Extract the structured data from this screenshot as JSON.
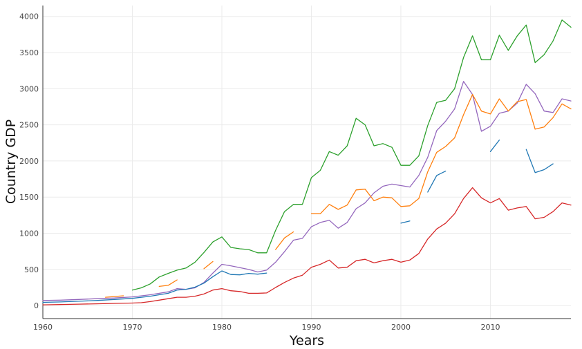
{
  "chart_data": {
    "type": "line",
    "title": "",
    "xlabel": "Years",
    "ylabel": "Country GDP",
    "xlim": [
      1960,
      2019
    ],
    "ylim": [
      -180,
      4150
    ],
    "x_ticks": [
      1960,
      1970,
      1980,
      1990,
      2000,
      2010
    ],
    "y_ticks": [
      0,
      500,
      1000,
      1500,
      2000,
      2500,
      3000,
      3500,
      4000
    ],
    "grid": true,
    "legend": "none",
    "series": [
      {
        "color": "#2ca02c",
        "points": [
          [
            1970,
            215
          ],
          [
            1971,
            245
          ],
          [
            1972,
            300
          ],
          [
            1973,
            395
          ],
          [
            1974,
            445
          ],
          [
            1975,
            490
          ],
          [
            1976,
            520
          ],
          [
            1977,
            600
          ],
          [
            1978,
            735
          ],
          [
            1979,
            880
          ],
          [
            1980,
            950
          ],
          [
            1981,
            805
          ],
          [
            1982,
            785
          ],
          [
            1983,
            775
          ],
          [
            1984,
            730
          ],
          [
            1985,
            730
          ],
          [
            1986,
            1040
          ],
          [
            1987,
            1300
          ],
          [
            1988,
            1400
          ],
          [
            1989,
            1400
          ],
          [
            1990,
            1770
          ],
          [
            1991,
            1870
          ],
          [
            1992,
            2130
          ],
          [
            1993,
            2080
          ],
          [
            1994,
            2210
          ],
          [
            1995,
            2590
          ],
          [
            1996,
            2500
          ],
          [
            1997,
            2210
          ],
          [
            1998,
            2240
          ],
          [
            1999,
            2190
          ],
          [
            2000,
            1940
          ],
          [
            2001,
            1940
          ],
          [
            2002,
            2070
          ],
          [
            2003,
            2490
          ],
          [
            2004,
            2810
          ],
          [
            2005,
            2840
          ],
          [
            2006,
            3000
          ],
          [
            2007,
            3430
          ],
          [
            2008,
            3730
          ],
          [
            2009,
            3400
          ],
          [
            2010,
            3400
          ],
          [
            2011,
            3740
          ],
          [
            2012,
            3530
          ],
          [
            2013,
            3730
          ],
          [
            2014,
            3880
          ],
          [
            2015,
            3360
          ],
          [
            2016,
            3470
          ],
          [
            2017,
            3660
          ],
          [
            2018,
            3950
          ],
          [
            2019,
            3850
          ]
        ]
      },
      {
        "color": "#9467bd",
        "points": [
          [
            1960,
            70
          ],
          [
            1962,
            75
          ],
          [
            1964,
            85
          ],
          [
            1966,
            95
          ],
          [
            1968,
            105
          ],
          [
            1970,
            120
          ],
          [
            1972,
            150
          ],
          [
            1974,
            190
          ],
          [
            1975,
            235
          ],
          [
            1976,
            225
          ],
          [
            1977,
            245
          ],
          [
            1978,
            320
          ],
          [
            1979,
            450
          ],
          [
            1980,
            570
          ],
          [
            1981,
            550
          ],
          [
            1982,
            525
          ],
          [
            1983,
            500
          ],
          [
            1984,
            465
          ],
          [
            1985,
            490
          ],
          [
            1986,
            600
          ],
          [
            1987,
            745
          ],
          [
            1988,
            905
          ],
          [
            1989,
            930
          ],
          [
            1990,
            1090
          ],
          [
            1991,
            1150
          ],
          [
            1992,
            1180
          ],
          [
            1993,
            1070
          ],
          [
            1994,
            1150
          ],
          [
            1995,
            1340
          ],
          [
            1996,
            1420
          ],
          [
            1997,
            1560
          ],
          [
            1998,
            1650
          ],
          [
            1999,
            1680
          ],
          [
            2000,
            1660
          ],
          [
            2001,
            1640
          ],
          [
            2002,
            1800
          ],
          [
            2003,
            2050
          ],
          [
            2004,
            2420
          ],
          [
            2005,
            2550
          ],
          [
            2006,
            2720
          ],
          [
            2007,
            3100
          ],
          [
            2008,
            2920
          ],
          [
            2009,
            2410
          ],
          [
            2010,
            2480
          ],
          [
            2011,
            2660
          ],
          [
            2012,
            2690
          ],
          [
            2013,
            2800
          ],
          [
            2014,
            3060
          ],
          [
            2015,
            2930
          ],
          [
            2016,
            2690
          ],
          [
            2017,
            2670
          ],
          [
            2018,
            2860
          ],
          [
            2019,
            2830
          ]
        ]
      },
      {
        "color": "#ff7f0e",
        "points": [
          [
            1967,
            115
          ],
          [
            1969,
            135
          ],
          null,
          [
            1973,
            265
          ],
          [
            1974,
            280
          ],
          [
            1975,
            355
          ],
          null,
          [
            1978,
            510
          ],
          [
            1979,
            610
          ],
          null,
          [
            1986,
            775
          ],
          [
            1987,
            935
          ],
          [
            1988,
            1020
          ],
          null,
          [
            1990,
            1270
          ],
          [
            1991,
            1270
          ],
          [
            1992,
            1400
          ],
          [
            1993,
            1330
          ],
          [
            1994,
            1390
          ],
          [
            1995,
            1600
          ],
          [
            1996,
            1610
          ],
          [
            1997,
            1450
          ],
          [
            1998,
            1500
          ],
          [
            1999,
            1490
          ],
          [
            2000,
            1370
          ],
          [
            2001,
            1380
          ],
          [
            2002,
            1480
          ],
          [
            2003,
            1850
          ],
          [
            2004,
            2120
          ],
          [
            2005,
            2200
          ],
          [
            2006,
            2320
          ],
          [
            2007,
            2640
          ],
          [
            2008,
            2920
          ],
          [
            2009,
            2690
          ],
          [
            2010,
            2650
          ],
          [
            2011,
            2860
          ],
          [
            2012,
            2690
          ],
          [
            2013,
            2820
          ],
          [
            2014,
            2850
          ],
          [
            2015,
            2440
          ],
          [
            2016,
            2470
          ],
          [
            2017,
            2600
          ],
          [
            2018,
            2790
          ],
          [
            2019,
            2720
          ]
        ]
      },
      {
        "color": "#1f77b4",
        "points": [
          [
            1960,
            45
          ],
          [
            1962,
            50
          ],
          [
            1964,
            60
          ],
          [
            1966,
            70
          ],
          [
            1968,
            85
          ],
          [
            1970,
            100
          ],
          [
            1972,
            130
          ],
          [
            1974,
            170
          ],
          [
            1975,
            215
          ],
          [
            1976,
            225
          ],
          [
            1977,
            255
          ],
          [
            1978,
            310
          ],
          [
            1979,
            400
          ],
          [
            1980,
            480
          ],
          [
            1981,
            430
          ],
          [
            1982,
            425
          ],
          [
            1983,
            445
          ],
          [
            1984,
            435
          ],
          [
            1985,
            450
          ],
          null,
          [
            2000,
            1140
          ],
          [
            2001,
            1170
          ],
          null,
          [
            2003,
            1570
          ],
          [
            2004,
            1800
          ],
          [
            2005,
            1860
          ],
          null,
          [
            2010,
            2130
          ],
          [
            2011,
            2290
          ],
          null,
          [
            2014,
            2160
          ],
          [
            2015,
            1840
          ],
          [
            2016,
            1880
          ],
          [
            2017,
            1960
          ]
        ]
      },
      {
        "color": "#d62728",
        "points": [
          [
            1960,
            10
          ],
          [
            1962,
            15
          ],
          [
            1964,
            20
          ],
          [
            1966,
            25
          ],
          [
            1968,
            30
          ],
          [
            1970,
            35
          ],
          [
            1971,
            40
          ],
          [
            1972,
            55
          ],
          [
            1973,
            75
          ],
          [
            1974,
            95
          ],
          [
            1975,
            115
          ],
          [
            1976,
            115
          ],
          [
            1977,
            130
          ],
          [
            1978,
            160
          ],
          [
            1979,
            215
          ],
          [
            1980,
            235
          ],
          [
            1981,
            205
          ],
          [
            1982,
            195
          ],
          [
            1983,
            170
          ],
          [
            1984,
            170
          ],
          [
            1985,
            175
          ],
          [
            1986,
            250
          ],
          [
            1987,
            320
          ],
          [
            1988,
            380
          ],
          [
            1989,
            420
          ],
          [
            1990,
            530
          ],
          [
            1991,
            570
          ],
          [
            1992,
            630
          ],
          [
            1993,
            520
          ],
          [
            1994,
            530
          ],
          [
            1995,
            620
          ],
          [
            1996,
            640
          ],
          [
            1997,
            590
          ],
          [
            1998,
            620
          ],
          [
            1999,
            640
          ],
          [
            2000,
            600
          ],
          [
            2001,
            630
          ],
          [
            2002,
            720
          ],
          [
            2003,
            920
          ],
          [
            2004,
            1060
          ],
          [
            2005,
            1140
          ],
          [
            2006,
            1270
          ],
          [
            2007,
            1480
          ],
          [
            2008,
            1630
          ],
          [
            2009,
            1490
          ],
          [
            2010,
            1420
          ],
          [
            2011,
            1480
          ],
          [
            2012,
            1320
          ],
          [
            2013,
            1350
          ],
          [
            2014,
            1370
          ],
          [
            2015,
            1200
          ],
          [
            2016,
            1220
          ],
          [
            2017,
            1300
          ],
          [
            2018,
            1420
          ],
          [
            2019,
            1390
          ]
        ]
      }
    ]
  }
}
